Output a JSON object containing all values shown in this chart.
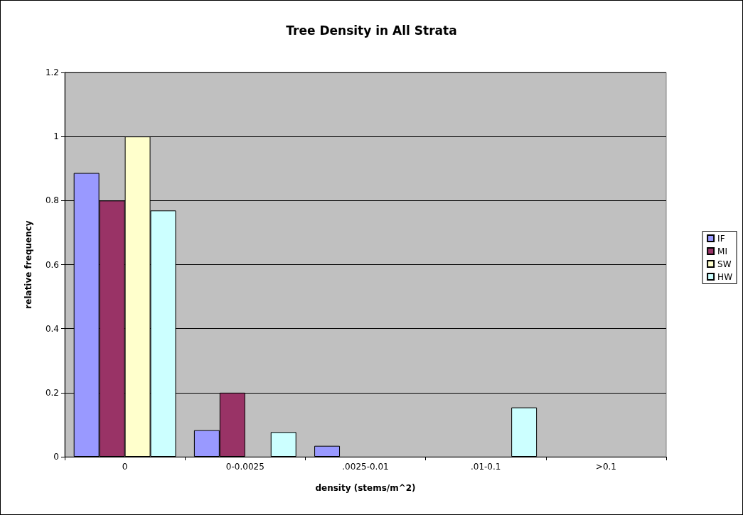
{
  "chart_data": {
    "type": "bar",
    "title": "Tree Density in All Strata",
    "xlabel": "density (stems/m^2)",
    "ylabel": "relative frequency",
    "categories": [
      "0",
      "0-0.0025",
      ".0025-0.01",
      ".01-0.1",
      ">0.1"
    ],
    "series": [
      {
        "name": "IF",
        "color": "#9999ff",
        "values": [
          0.886,
          0.083,
          0.034,
          null,
          null
        ]
      },
      {
        "name": "MI",
        "color": "#993366",
        "values": [
          0.8,
          0.2,
          null,
          null,
          null
        ]
      },
      {
        "name": "SW",
        "color": "#ffffcc",
        "values": [
          1,
          null,
          null,
          null,
          null
        ]
      },
      {
        "name": "HW",
        "color": "#ccffff",
        "values": [
          0.769,
          0.077,
          null,
          0.154,
          null
        ]
      }
    ],
    "ylim": [
      0,
      1.2
    ],
    "yticks": [
      0,
      0.2,
      0.4,
      0.6,
      0.8,
      1,
      1.2
    ],
    "grid": "y",
    "legend": "right"
  }
}
